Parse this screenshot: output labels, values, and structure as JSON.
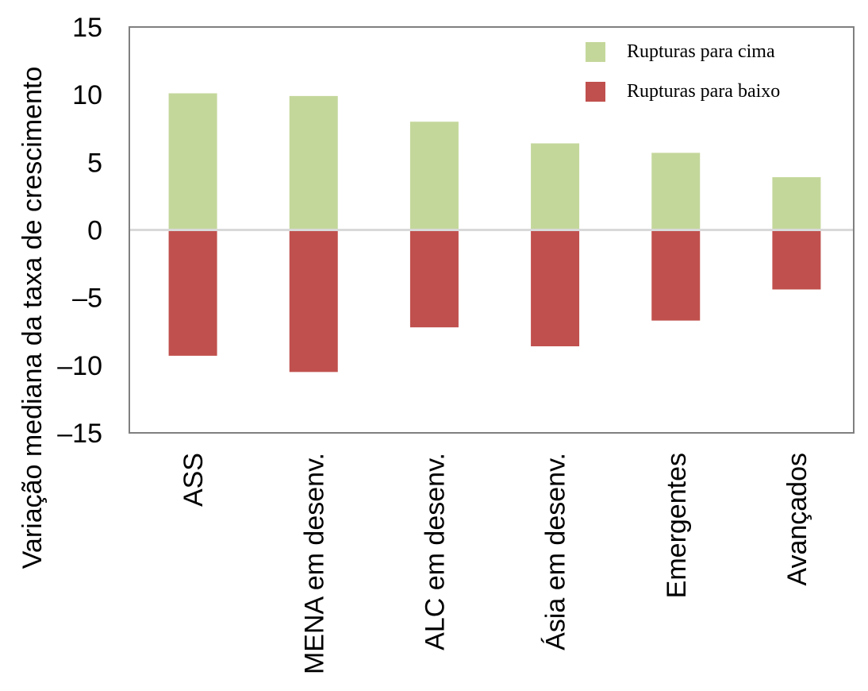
{
  "chart_data": {
    "type": "bar",
    "stacked": true,
    "title": "",
    "xlabel": "",
    "ylabel": "Variação mediana da taxa de crescimento",
    "ylim": [
      -15,
      15
    ],
    "yticks": [
      15,
      10,
      5,
      0,
      -5,
      -10,
      -15
    ],
    "ytick_labels": [
      "15",
      "10",
      "5",
      "0",
      "–5",
      "–10",
      "–15"
    ],
    "categories": [
      "ASS",
      "MENA em desenv.",
      "ALC em desenv.",
      "Ásia em desenv.",
      "Emergentes",
      "Avançados"
    ],
    "series": [
      {
        "name": "Rupturas para cima",
        "color": "#c4d79b",
        "values": [
          10.1,
          9.9,
          8.0,
          6.4,
          5.7,
          3.9
        ]
      },
      {
        "name": "Rupturas para baixo",
        "color": "#c0504d",
        "values": [
          -9.3,
          -10.5,
          -7.2,
          -8.6,
          -6.7,
          -4.4
        ]
      }
    ],
    "legend_position": "top-right",
    "grid": false,
    "zero_line_color": "#d9d9d9",
    "frame_color": "#808080"
  }
}
